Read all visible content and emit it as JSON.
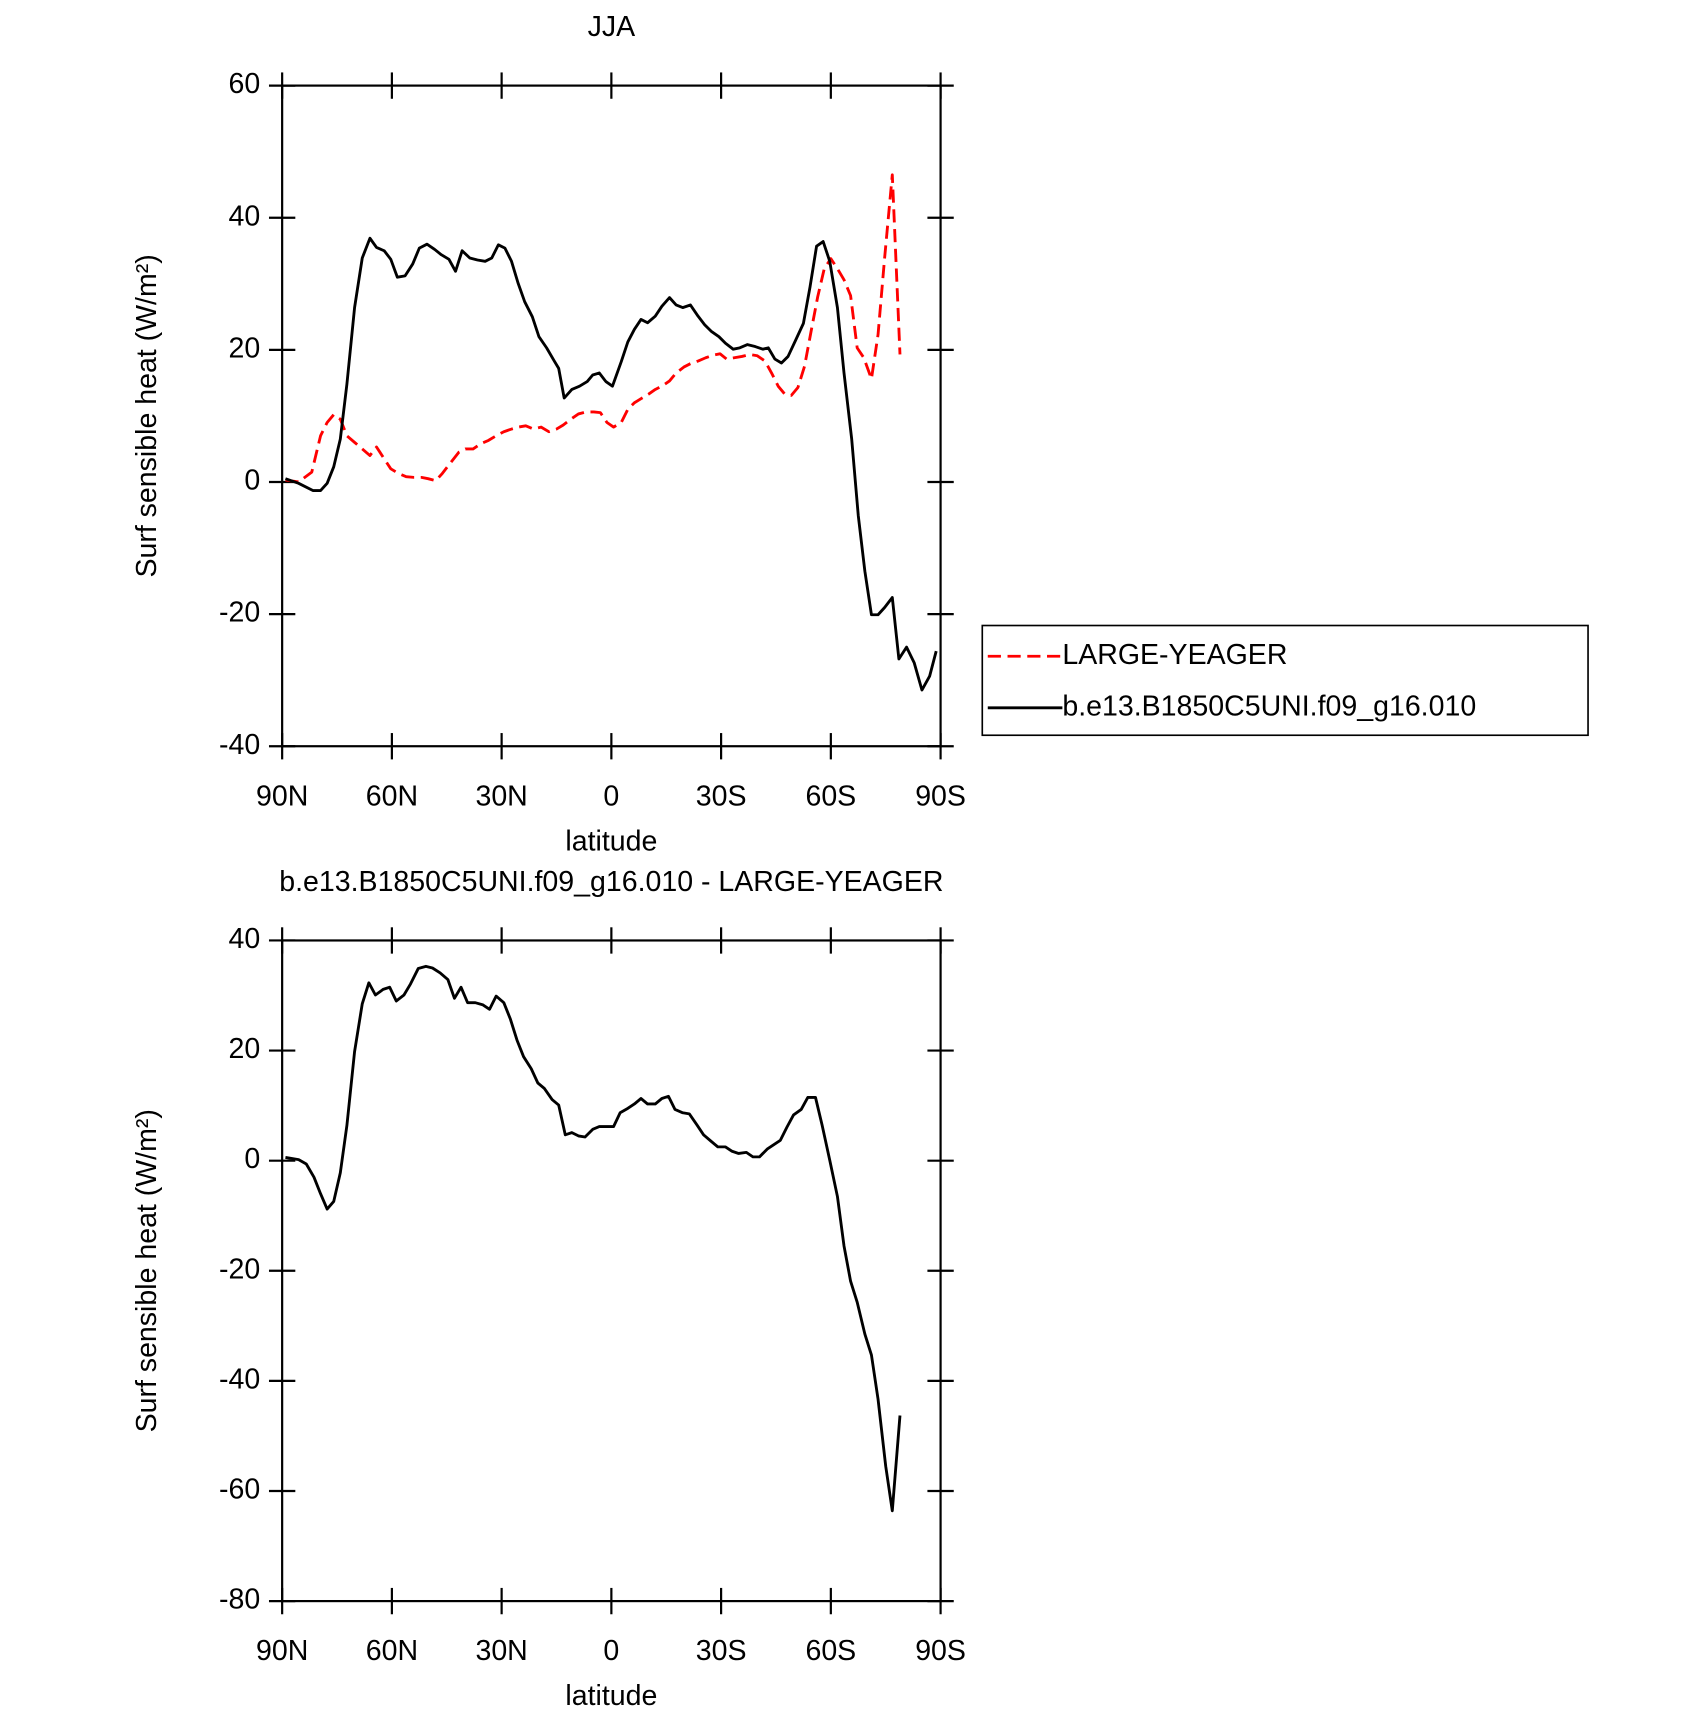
{
  "chart_data": [
    {
      "type": "line",
      "title": "JJA",
      "xlabel": "latitude",
      "ylabel": "Surf sensible heat (W/m²)",
      "xlim": [
        90,
        -90
      ],
      "xticks": [
        {
          "value": 90,
          "label": "90N"
        },
        {
          "value": 60,
          "label": "60N"
        },
        {
          "value": 30,
          "label": "30N"
        },
        0,
        {
          "value": -30,
          "label": "30S"
        },
        {
          "value": -60,
          "label": "60S"
        },
        {
          "value": -90,
          "label": "90S"
        }
      ],
      "ylim": [
        -40,
        60
      ],
      "yticks": [
        -40,
        -20,
        0,
        20,
        40,
        60
      ],
      "legend": "right",
      "series": [
        {
          "name": "LARGE-YEAGER",
          "color": "#ff0000",
          "line_style": "dashed",
          "x": [
            89.1,
            85.5,
            81.9,
            79.5,
            77.7,
            75.9,
            74.1,
            72.3,
            70.2,
            68.1,
            66,
            64.2,
            62.1,
            60.3,
            58.2,
            56.1,
            54,
            51.9,
            50.1,
            48,
            46.2,
            44.1,
            41.7,
            39.9,
            37.8,
            35.7,
            33.6,
            31.5,
            29.4,
            27.3,
            25.5,
            23.4,
            21.3,
            19.2,
            17.1,
            15,
            13.2,
            11.1,
            9,
            6.9,
            4.8,
            3,
            1.2,
            -0.6,
            -2.7,
            -4.5,
            -6.3,
            -8.1,
            -10.2,
            -12,
            -14.1,
            -15.9,
            -17.7,
            -19.8,
            -21.6,
            -23.7,
            -25.8,
            -27.9,
            -29.7,
            -31.5,
            -33.6,
            -35.7,
            -37.8,
            -39.9,
            -42,
            -43.8,
            -45.6,
            -47.4,
            -49.2,
            -51,
            -52.8,
            -54.6,
            -56.4,
            -58.2,
            -60,
            -61.8,
            -63.6,
            -65.4,
            -67.2,
            -69,
            -71.1,
            -72.9,
            -74.7,
            -76.8,
            -78.9
          ],
          "values": [
            0.3,
            0,
            1.5,
            7,
            9,
            10.2,
            9.5,
            7,
            6,
            5,
            4,
            5.3,
            3.5,
            2,
            1.3,
            0.8,
            0.7,
            0.7,
            0.5,
            0.2,
            1.3,
            2.8,
            4.5,
            5,
            5,
            5.8,
            6.3,
            7,
            7.6,
            8,
            8.3,
            8.5,
            8,
            8.3,
            7.6,
            8,
            8.6,
            9.5,
            10.3,
            10.6,
            10.6,
            10.5,
            9,
            8.3,
            9,
            11,
            12,
            12.6,
            13.3,
            14,
            14.6,
            15.3,
            16.5,
            17.4,
            17.9,
            18.3,
            18.8,
            19.2,
            19.4,
            18.6,
            18.8,
            19,
            19.3,
            19.1,
            18.3,
            16.5,
            14.5,
            13.3,
            13.1,
            14.3,
            17.5,
            22.8,
            28,
            32.3,
            33.8,
            32.3,
            30.6,
            28.2,
            20.3,
            18.8,
            15.6,
            22.3,
            33.9,
            46.5,
            19.3
          ]
        },
        {
          "name": "b.e13.B1850C5UNI.f09_g16.010",
          "color": "#000000",
          "line_style": "solid",
          "x": [
            89.1,
            85.5,
            81.6,
            79.5,
            77.7,
            75.9,
            74.1,
            72.3,
            70.2,
            68.1,
            66,
            64.2,
            62.1,
            60.3,
            58.5,
            56.4,
            54.3,
            52.5,
            50.4,
            48.3,
            46.5,
            44.4,
            42.6,
            40.8,
            38.7,
            36.6,
            34.5,
            32.7,
            30.9,
            29.1,
            27.3,
            25.5,
            23.7,
            21.6,
            19.8,
            17.7,
            15.6,
            14.4,
            12.9,
            10.8,
            8.7,
            6.6,
            5.1,
            3.3,
            1.5,
            -0.3,
            -2.7,
            -4.5,
            -6.3,
            -8.1,
            -9.9,
            -12,
            -13.8,
            -15.9,
            -17.7,
            -19.5,
            -21.6,
            -23.7,
            -25.5,
            -27.3,
            -29.4,
            -31.2,
            -33.3,
            -35.1,
            -37.2,
            -39.3,
            -41.4,
            -42.9,
            -44.7,
            -46.5,
            -48.3,
            -50.4,
            -52.5,
            -54.3,
            -56.1,
            -57.9,
            -59.7,
            -61.8,
            -63.6,
            -65.7,
            -67.5,
            -69.3,
            -71.1,
            -72.9,
            -74.7,
            -76.8,
            -78.6,
            -80.7,
            -82.8,
            -84.9,
            -87,
            -88.8
          ],
          "values": [
            0.5,
            -0.2,
            -1.3,
            -1.3,
            -0.2,
            2.3,
            6.5,
            14.8,
            26.4,
            33.9,
            36.9,
            35.5,
            35,
            33.7,
            31,
            31.2,
            33,
            35.4,
            36,
            35.2,
            34.4,
            33.7,
            31.9,
            35,
            33.9,
            33.6,
            33.4,
            33.9,
            35.9,
            35.4,
            33.4,
            30.1,
            27.3,
            25,
            22,
            20.3,
            18.3,
            17.2,
            12.7,
            14,
            14.5,
            15.2,
            16.2,
            16.5,
            15.2,
            14.5,
            18.2,
            21.2,
            23.1,
            24.6,
            24.1,
            25.1,
            26.6,
            27.9,
            26.8,
            26.4,
            26.8,
            25.1,
            23.8,
            22.8,
            22,
            21,
            20.1,
            20.3,
            20.8,
            20.5,
            20.1,
            20.3,
            18.6,
            18,
            19,
            21.5,
            24,
            29.5,
            35.7,
            36.4,
            33.4,
            26.4,
            16.5,
            6.5,
            -5.1,
            -13.5,
            -20.1,
            -20.1,
            -19,
            -17.5,
            -26.8,
            -25,
            -27.4,
            -31.5,
            -29.4,
            -25.6
          ]
        }
      ]
    },
    {
      "type": "line",
      "title": "b.e13.B1850C5UNI.f09_g16.010 - LARGE-YEAGER",
      "xlabel": "latitude",
      "ylabel": "Surf sensible heat (W/m²)",
      "xlim": [
        90,
        -90
      ],
      "xticks": [
        {
          "value": 90,
          "label": "90N"
        },
        {
          "value": 60,
          "label": "60N"
        },
        {
          "value": 30,
          "label": "30N"
        },
        0,
        {
          "value": -30,
          "label": "30S"
        },
        {
          "value": -60,
          "label": "60S"
        },
        {
          "value": -90,
          "label": "90S"
        }
      ],
      "ylim": [
        -80,
        40
      ],
      "yticks": [
        -80,
        -60,
        -40,
        -20,
        0,
        20,
        40
      ],
      "series": [
        {
          "color": "#000000",
          "line_style": "solid",
          "x": [
            89.1,
            85.5,
            83.4,
            81.3,
            79.5,
            77.7,
            75.9,
            74.1,
            72.3,
            70.2,
            68.1,
            66.3,
            64.5,
            62.4,
            60.6,
            58.8,
            56.7,
            54.9,
            52.8,
            50.7,
            48.9,
            46.8,
            44.7,
            42.9,
            41.1,
            39.3,
            37.2,
            35.1,
            33.3,
            31.5,
            29.4,
            27.6,
            25.8,
            24,
            21.9,
            20.1,
            18.3,
            16.2,
            14.4,
            12.6,
            10.8,
            9,
            7.2,
            5.1,
            3.3,
            1.5,
            -0.6,
            -2.4,
            -4.5,
            -6.3,
            -8.1,
            -9.9,
            -12,
            -13.8,
            -15.6,
            -17.4,
            -19.5,
            -21.3,
            -23.4,
            -25.2,
            -27.3,
            -29.1,
            -31.2,
            -33,
            -34.8,
            -36.9,
            -38.7,
            -40.5,
            -42.6,
            -44.4,
            -46.2,
            -48,
            -49.8,
            -51.9,
            -53.7,
            -55.8,
            -57.6,
            -59.7,
            -61.8,
            -63.6,
            -65.4,
            -67.2,
            -69.3,
            -71.1,
            -72.9,
            -75,
            -76.8,
            -78.9
          ],
          "values": [
            0.6,
            0.2,
            -0.6,
            -3,
            -6,
            -8.8,
            -7.4,
            -2.2,
            6.4,
            19.8,
            28.5,
            32.3,
            30.1,
            31.1,
            31.5,
            29,
            30.1,
            32.1,
            34.9,
            35.3,
            35,
            34.1,
            32.9,
            29.5,
            31.5,
            28.7,
            28.7,
            28.3,
            27.5,
            29.9,
            28.7,
            25.7,
            21.9,
            18.9,
            16.7,
            14.1,
            13.1,
            11.1,
            10.1,
            4.7,
            5.1,
            4.5,
            4.3,
            5.7,
            6.2,
            6.2,
            6.2,
            8.7,
            9.5,
            10.3,
            11.3,
            10.3,
            10.3,
            11.3,
            11.7,
            9.3,
            8.7,
            8.5,
            6.5,
            4.7,
            3.5,
            2.5,
            2.5,
            1.7,
            1.3,
            1.5,
            0.7,
            0.7,
            2.1,
            2.9,
            3.7,
            6.1,
            8.3,
            9.3,
            11.5,
            11.5,
            6.5,
            0.1,
            -6.5,
            -15.5,
            -21.9,
            -25.7,
            -31.5,
            -35.3,
            -43.3,
            -55.5,
            -63.6,
            -46.3
          ]
        }
      ]
    }
  ]
}
